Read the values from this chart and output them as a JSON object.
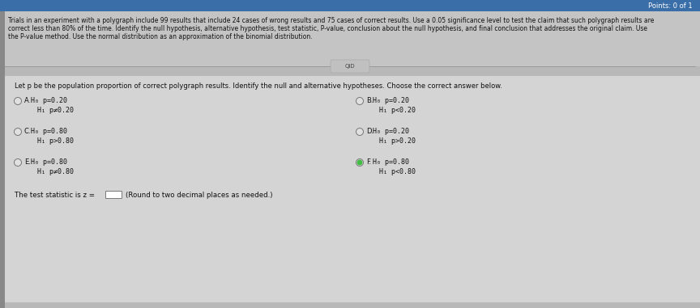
{
  "bg_outer": "#8a8a8a",
  "bg_top_bar": "#3a6ea8",
  "bg_problem": "#c8c8c8",
  "bg_separator": "#b0b0b0",
  "bg_content": "#d8d8d8",
  "bg_white_panel": "#e8e8e8",
  "text_color": "#1a1a1a",
  "text_color_light": "#333333",
  "title_bar_text": "Points: 0 of 1",
  "problem_text_line1": "Trials in an experiment with a polygraph include 99 results that include 24 cases of wrong results and 75 cases of correct results. Use a 0.05 significance level to test the claim that such polygraph results are",
  "problem_text_line2": "correct less than 80% of the time. Identify the null hypothesis, alternative hypothesis, test statistic, P-value, conclusion about the null hypothesis, and final conclusion that addresses the original claim. Use",
  "problem_text_line3": "the P-value method. Use the normal distribution as an approximation of the binomial distribution.",
  "instruction_text": "Let p be the population proportion of correct polygraph results. Identify the null and alternative hypotheses. Choose the correct answer below.",
  "options": [
    {
      "label": "A.",
      "line1": "H₀ p=0.20",
      "line2": "H₁ p≠0.20",
      "selected": false,
      "col": 0,
      "row": 0
    },
    {
      "label": "B.",
      "line1": "H₀ p=0.20",
      "line2": "H₁ p<0.20",
      "selected": false,
      "col": 1,
      "row": 0
    },
    {
      "label": "C.",
      "line1": "H₀ p=0.80",
      "line2": "H₁ p>0.80",
      "selected": false,
      "col": 0,
      "row": 1
    },
    {
      "label": "D.",
      "line1": "H₀ p=0.20",
      "line2": "H₁ p>0.20",
      "selected": false,
      "col": 1,
      "row": 1
    },
    {
      "label": "E.",
      "line1": "H₀ p=0.80",
      "line2": "H₁ p≠0.80",
      "selected": false,
      "col": 0,
      "row": 2
    },
    {
      "label": "F.",
      "line1": "H₀ p=0.80",
      "line2": "H₁ p<0.80",
      "selected": true,
      "col": 1,
      "row": 2
    }
  ],
  "test_statistic_text": "The test statistic is z =",
  "round_note": "(Round to two decimal places as needed.)",
  "separator_label": "QID",
  "checkmark_color": "#44bb44",
  "radio_edge_color": "#777777"
}
